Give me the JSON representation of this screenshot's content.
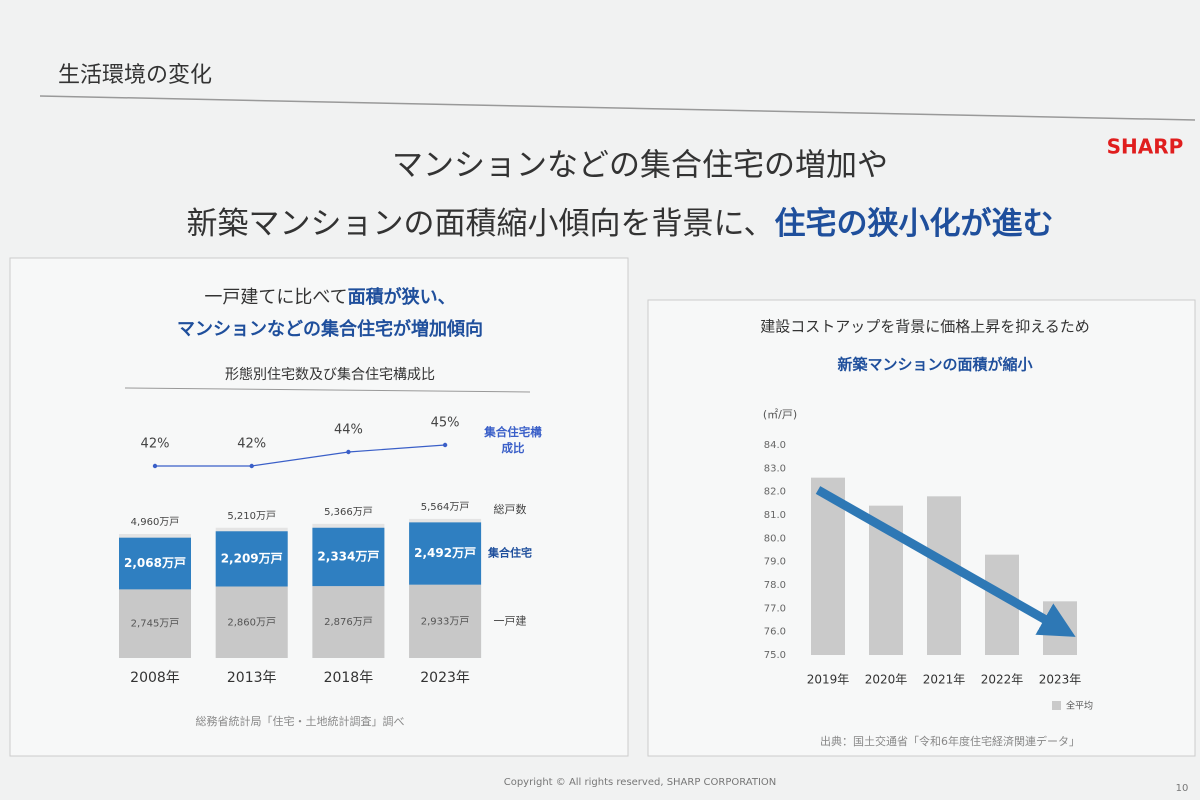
{
  "slide": {
    "section": "生活環境の変化",
    "logo": "SHARP",
    "headline_1": "マンションなどの集合住宅の増加や",
    "headline_2": [
      "新築マンションの面積縮小傾向を背景に、",
      "住宅の狭小化が進む"
    ],
    "copyright": "Copyright © All rights reserved, SHARP CORPORATION",
    "page": "10"
  },
  "chart_data": [
    {
      "type": "stacked_bar",
      "heading": [
        [
          "一戸建てに比べて",
          "面積が狭い、"
        ],
        [
          "マンションなどの集合住宅",
          "が増加傾向"
        ]
      ],
      "title": "形態別住宅数及び集合住宅構成比",
      "categories": [
        "2008年",
        "2013年",
        "2018年",
        "2023年"
      ],
      "series": [
        {
          "name": "一戸建",
          "color": "#c8c8c8",
          "values": [
            2745,
            2860,
            2876,
            2933
          ],
          "value_labels": [
            "2,745万戸",
            "2,860万戸",
            "2,876万戸",
            "2,933万戸"
          ]
        },
        {
          "name": "集合住宅",
          "color": "#2f7fc1",
          "values": [
            2068,
            2209,
            2334,
            2492
          ],
          "value_labels": [
            "2,068万戸",
            "2,209万戸",
            "2,334万戸",
            "2,492万戸"
          ]
        }
      ],
      "totals": {
        "name": "総戸数",
        "color": "#e4e4e4",
        "values": [
          4960,
          5210,
          5366,
          5564
        ],
        "value_labels": [
          "4,960万戸",
          "5,210万戸",
          "5,366万戸",
          "5,564万戸"
        ]
      },
      "ratio": {
        "name": "集合住宅構成比",
        "color": "#3a5fc8",
        "values": [
          42,
          42,
          44,
          45
        ],
        "value_labels": [
          "42%",
          "42%",
          "44%",
          "45%"
        ]
      },
      "source": "総務省統計局「住宅・土地統計調査」調べ"
    },
    {
      "type": "bar",
      "heading": [
        "建設コストアップを背景に価格上昇を抑えるため",
        "新築マンションの面積が縮小"
      ],
      "y_unit": "(㎡/戸)",
      "categories": [
        "2019年",
        "2020年",
        "2021年",
        "2022年",
        "2023年"
      ],
      "series": [
        {
          "name": "全平均",
          "color": "#cacaca",
          "values": [
            82.6,
            81.4,
            81.8,
            79.3,
            77.3
          ]
        }
      ],
      "ylim": [
        75,
        84
      ],
      "yticks": [
        {
          "value": 75,
          "label": "75.0"
        },
        {
          "value": 76,
          "label": "76.0"
        },
        {
          "value": 77,
          "label": "77.0"
        },
        {
          "value": 78,
          "label": "78.0"
        },
        {
          "value": 79,
          "label": "79.0"
        },
        {
          "value": 80,
          "label": "80.0"
        },
        {
          "value": 81,
          "label": "81.0"
        },
        {
          "value": 82,
          "label": "82.0"
        },
        {
          "value": 83,
          "label": "83.0"
        },
        {
          "value": 84,
          "label": "84.0"
        }
      ],
      "source": "出典：国土交通省「令和6年度住宅経済関連データ」"
    }
  ]
}
